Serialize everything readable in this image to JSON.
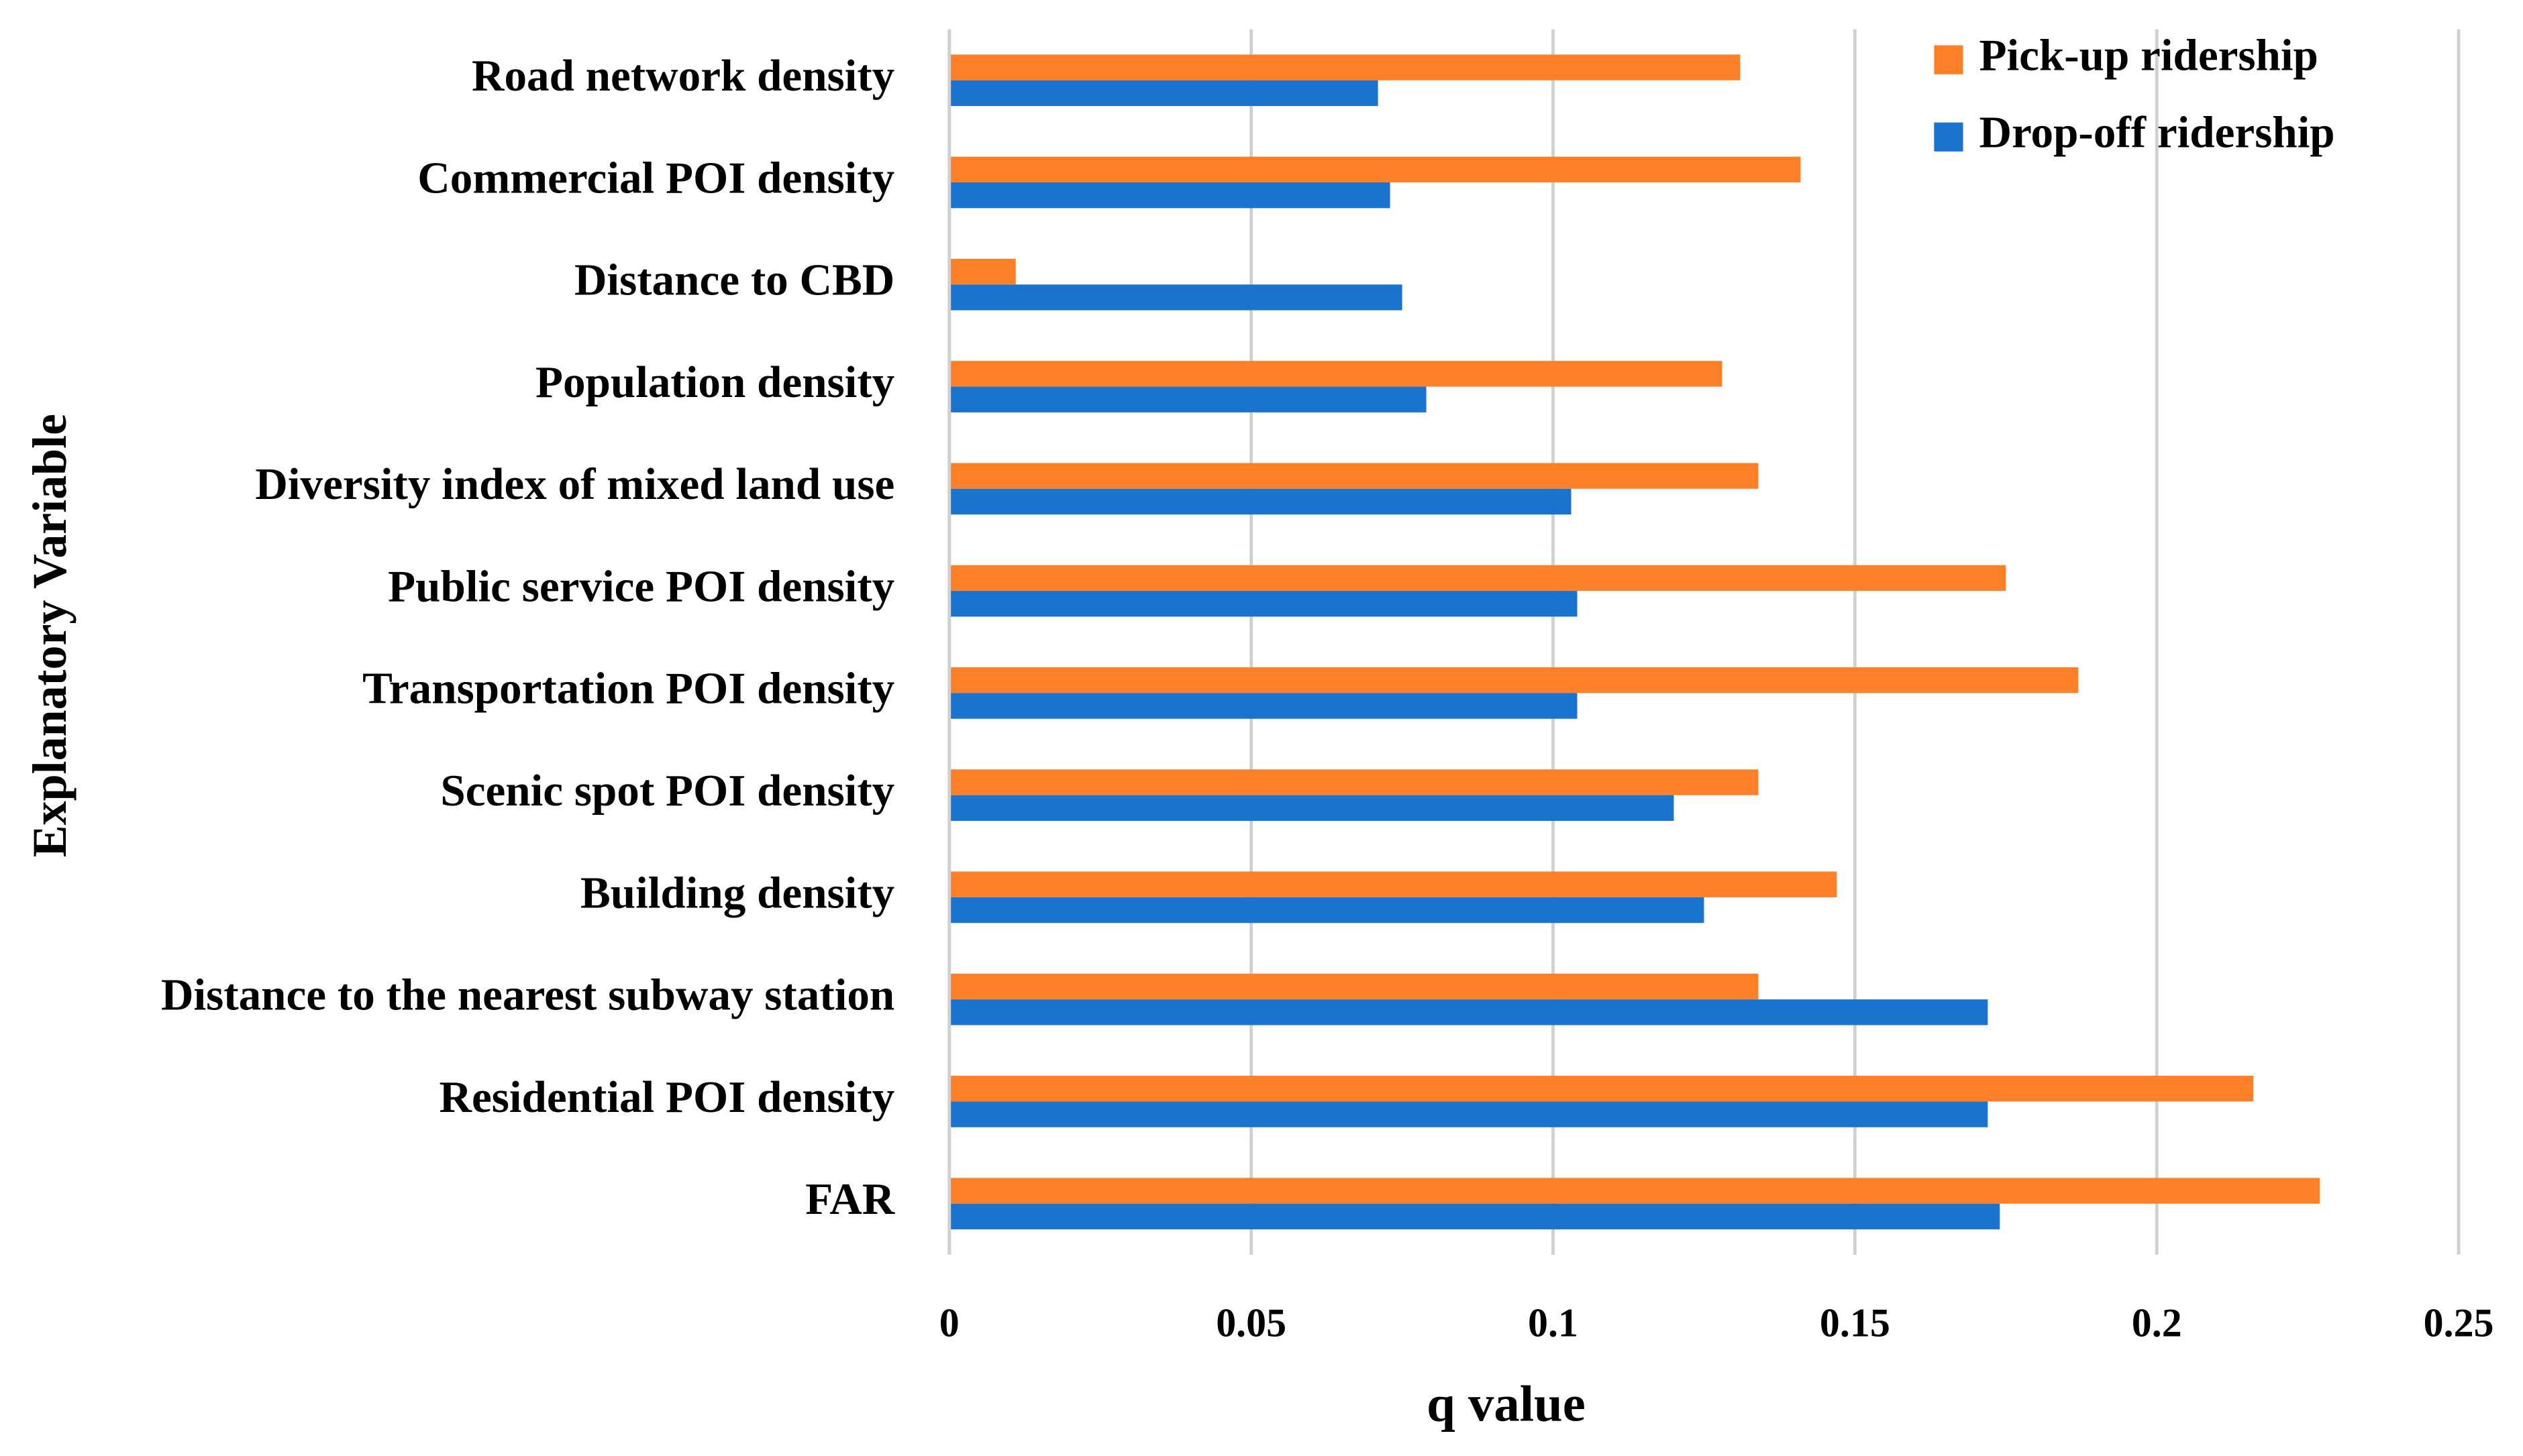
{
  "chart_data": {
    "type": "hbar",
    "x_label": "q value",
    "y_label": "Explanatory  Variable",
    "categories": [
      "Road network density",
      "Commercial POI density",
      "Distance to CBD",
      "Population density",
      "Diversity index of mixed land use",
      "Public service POI density",
      "Transportation POI density",
      "Scenic spot POI density",
      "Building density",
      "Distance to the nearest subway station",
      "Residential POI density",
      "FAR"
    ],
    "series": [
      {
        "name": "Pick-up ridership",
        "color": "#fd7f28",
        "values": [
          0.131,
          0.141,
          0.011,
          0.128,
          0.134,
          0.175,
          0.187,
          0.134,
          0.147,
          0.134,
          0.216,
          0.227
        ]
      },
      {
        "name": "Drop-off ridership",
        "color": "#1a74cd",
        "values": [
          0.071,
          0.073,
          0.075,
          0.079,
          0.103,
          0.104,
          0.104,
          0.12,
          0.125,
          0.172,
          0.172,
          0.174
        ]
      }
    ],
    "xlim": [
      0,
      0.25
    ],
    "xticks": [
      0,
      0.05,
      0.1,
      0.15,
      0.2,
      0.25
    ],
    "grid": true,
    "legend": "upper right"
  }
}
